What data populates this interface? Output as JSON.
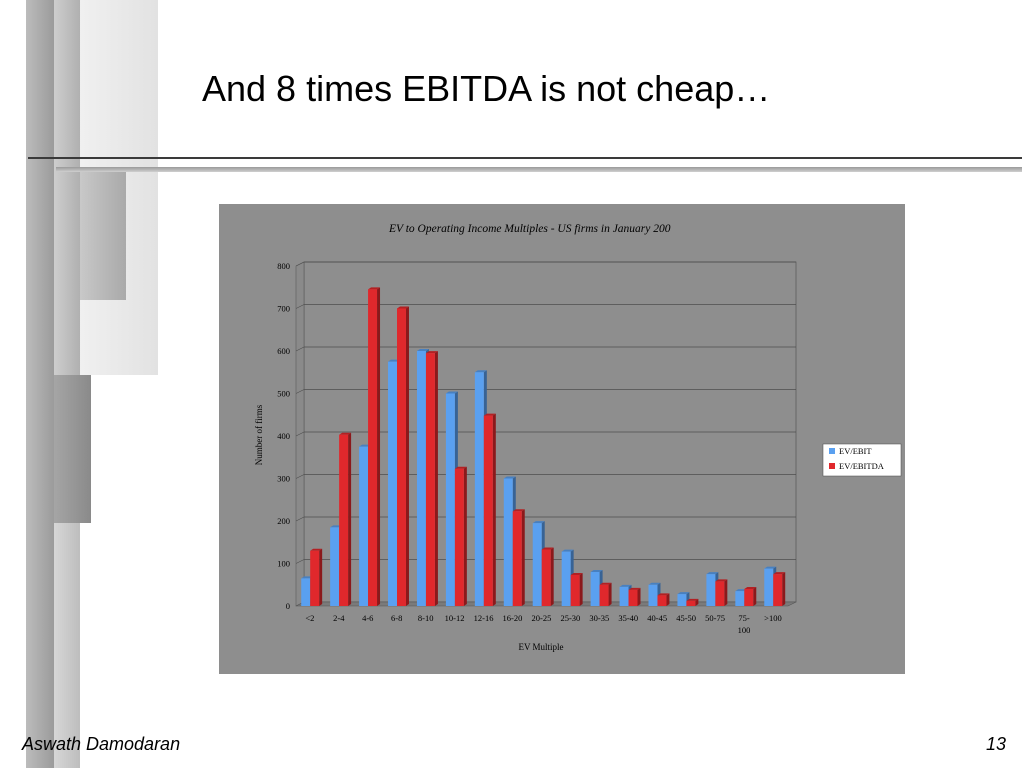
{
  "slide": {
    "title": "And 8 times EBITDA is not cheap…",
    "footer_author": "Aswath Damodaran",
    "page_number": "13"
  },
  "chart_data": {
    "type": "bar",
    "title": "EV to Operating Income Multiples - US firms in January 200",
    "xlabel": "EV Multiple",
    "ylabel": "Number of firms",
    "ylim": [
      0,
      800
    ],
    "yticks": [
      0,
      100,
      200,
      300,
      400,
      500,
      600,
      700,
      800
    ],
    "categories": [
      "<2",
      "2-4",
      "4-6",
      "6-8",
      "8-10",
      "10-12",
      "12-16",
      "16-20",
      "20-25",
      "25-30",
      "30-35",
      "35-40",
      "40-45",
      "45-50",
      "50-75",
      "75-100",
      ">100"
    ],
    "series": [
      {
        "name": "EV/EBIT",
        "color": "#5aa0f0",
        "values": [
          65,
          185,
          375,
          575,
          600,
          500,
          550,
          300,
          195,
          128,
          80,
          45,
          50,
          28,
          75,
          35,
          88
        ]
      },
      {
        "name": "EV/EBITDA",
        "color": "#e0282c",
        "values": [
          130,
          403,
          745,
          700,
          595,
          323,
          448,
          223,
          133,
          73,
          50,
          38,
          25,
          12,
          58,
          40,
          75
        ]
      }
    ],
    "grid": true,
    "legend": "right"
  }
}
